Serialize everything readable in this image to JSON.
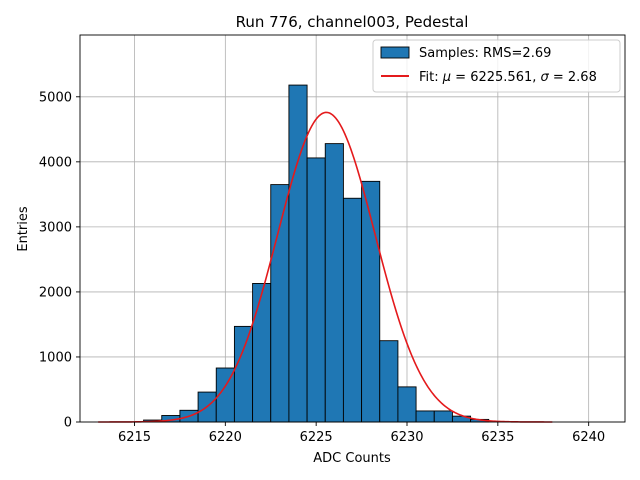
{
  "chart_data": {
    "type": "bar",
    "title": "Run 776, channel003, Pedestal",
    "xlabel": "ADC Counts",
    "ylabel": "Entries",
    "xlim": [
      6212,
      6242
    ],
    "ylim": [
      0,
      5950
    ],
    "xticks": [
      6215,
      6220,
      6225,
      6230,
      6235,
      6240
    ],
    "yticks": [
      0,
      1000,
      2000,
      3000,
      4000,
      5000
    ],
    "grid": true,
    "legend_position": "top-right",
    "histogram": {
      "name": "Samples: RMS=2.69",
      "color": "#1f77b4",
      "edge_color": "#000000",
      "bin_width": 1,
      "bins": [
        {
          "x": 6216,
          "count": 30
        },
        {
          "x": 6217,
          "count": 100
        },
        {
          "x": 6218,
          "count": 180
        },
        {
          "x": 6219,
          "count": 460
        },
        {
          "x": 6220,
          "count": 830
        },
        {
          "x": 6221,
          "count": 1470
        },
        {
          "x": 6222,
          "count": 2130
        },
        {
          "x": 6223,
          "count": 3650
        },
        {
          "x": 6224,
          "count": 5180
        },
        {
          "x": 6225,
          "count": 4060
        },
        {
          "x": 6226,
          "count": 4280
        },
        {
          "x": 6227,
          "count": 3440
        },
        {
          "x": 6228,
          "count": 3700
        },
        {
          "x": 6229,
          "count": 1250
        },
        {
          "x": 6230,
          "count": 540
        },
        {
          "x": 6231,
          "count": 170
        },
        {
          "x": 6232,
          "count": 170
        },
        {
          "x": 6233,
          "count": 90
        },
        {
          "x": 6234,
          "count": 40
        }
      ]
    },
    "fit": {
      "name": "Fit: μ = 6225.561, σ = 2.68",
      "name_parts": [
        "Fit: ",
        "μ",
        " = 6225.561, ",
        "σ",
        " = 2.68"
      ],
      "color": "#e41a1c",
      "type": "gaussian",
      "mu": 6225.561,
      "sigma": 2.68,
      "amplitude": 4760,
      "x_range": [
        6213,
        6238
      ]
    }
  }
}
